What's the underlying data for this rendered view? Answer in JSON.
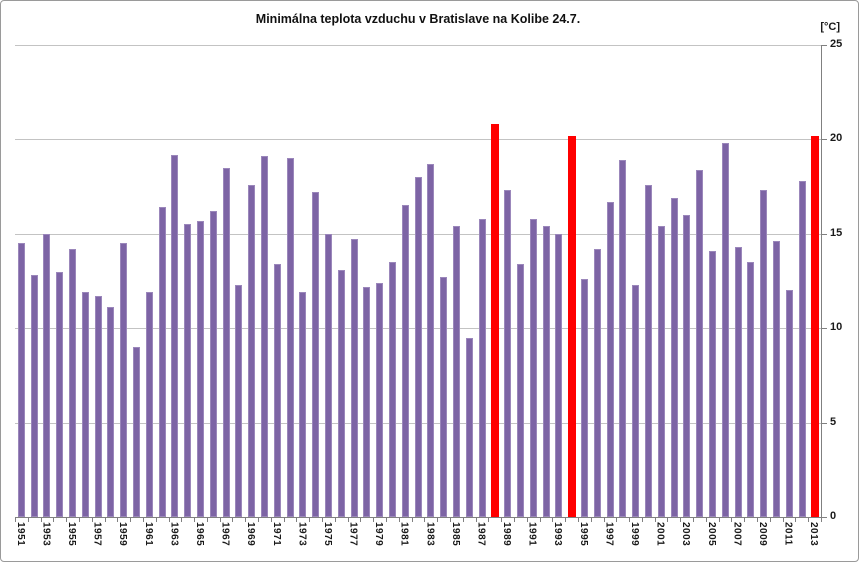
{
  "title": "Minimálna teplota vzduchu v Bratislave na Kolibe 24.7.",
  "unit_label": "[°C]",
  "colors": {
    "bar": "#7d64a5",
    "bar_border": "#9b87bb",
    "highlight": "#ff0000",
    "gridline": "#c3c3c3",
    "axis": "#808080",
    "text": "#1a1a1a"
  },
  "chart_data": {
    "type": "bar",
    "title": "Minimálna teplota vzduchu v Bratislave na Kolibe 24.7.",
    "xlabel": "",
    "ylabel": "[°C]",
    "ylim": [
      0,
      25
    ],
    "yticks": [
      0,
      5,
      10,
      15,
      20,
      25
    ],
    "grid": true,
    "legend": "none",
    "x_label_interval": 2,
    "axis_side": "right",
    "x": [
      1951,
      1952,
      1953,
      1954,
      1955,
      1956,
      1957,
      1958,
      1959,
      1960,
      1961,
      1962,
      1963,
      1964,
      1965,
      1966,
      1967,
      1968,
      1969,
      1970,
      1971,
      1972,
      1973,
      1974,
      1975,
      1976,
      1977,
      1978,
      1979,
      1980,
      1981,
      1982,
      1983,
      1984,
      1985,
      1986,
      1987,
      1988,
      1989,
      1990,
      1991,
      1992,
      1993,
      1994,
      1995,
      1996,
      1997,
      1998,
      1999,
      2000,
      2001,
      2002,
      2003,
      2004,
      2005,
      2006,
      2007,
      2008,
      2009,
      2010,
      2011,
      2012,
      2013
    ],
    "values": [
      14.5,
      12.8,
      15.0,
      13.0,
      14.2,
      11.9,
      11.7,
      11.1,
      14.5,
      9.0,
      11.9,
      16.4,
      19.2,
      15.5,
      15.7,
      16.2,
      18.5,
      12.3,
      17.6,
      19.1,
      13.4,
      19.0,
      11.9,
      17.2,
      15.0,
      13.1,
      14.7,
      12.2,
      12.4,
      13.5,
      16.5,
      18.0,
      18.7,
      12.7,
      15.4,
      9.5,
      15.8,
      20.8,
      17.3,
      13.4,
      15.8,
      15.4,
      15.0,
      20.2,
      12.6,
      14.2,
      16.7,
      18.9,
      12.3,
      17.6,
      15.4,
      16.9,
      16.0,
      18.4,
      14.1,
      19.8,
      14.3,
      13.5,
      17.3,
      14.6,
      12.0,
      17.8,
      20.2
    ],
    "highlighted_years": [
      1988,
      1994,
      2013
    ]
  }
}
